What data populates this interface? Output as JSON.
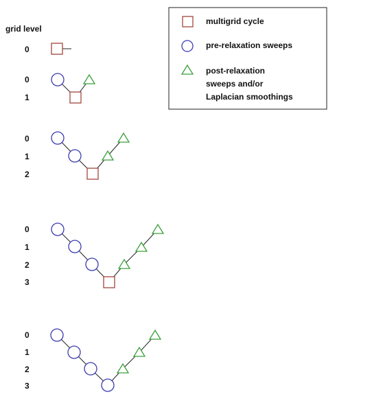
{
  "header": {
    "grid_level_label": "grid level"
  },
  "legend": {
    "multigrid": "multigrid cycle",
    "pre": "pre-relaxation sweeps",
    "post_lines": [
      "post-relaxation",
      "sweeps and/or",
      "Laplacian smoothings"
    ]
  },
  "rows": [
    {
      "levels": [
        "0"
      ]
    },
    {
      "levels": [
        "0",
        "1"
      ]
    },
    {
      "levels": [
        "0",
        "1",
        "2"
      ]
    },
    {
      "levels": [
        "0",
        "1",
        "2",
        "3"
      ]
    },
    {
      "levels": [
        "0",
        "1",
        "2",
        "3"
      ]
    }
  ],
  "colors": {
    "square": "#a0463c",
    "circle": "#3b3bb0",
    "triangle": "#3aa03a",
    "line": "#222222",
    "legend_border": "#222222"
  }
}
